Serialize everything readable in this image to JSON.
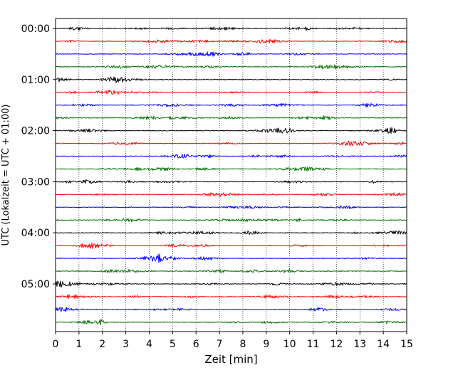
{
  "chart_data": {
    "type": "line",
    "subtype": "helicorder",
    "xlabel": "Zeit  [min]",
    "ylabel": "UTC (Lokalzeit = UTC + 01:00)",
    "xlim": [
      0,
      15
    ],
    "x_ticks": [
      "0",
      "1",
      "2",
      "3",
      "4",
      "5",
      "6",
      "7",
      "8",
      "9",
      "10",
      "11",
      "12",
      "13",
      "14",
      "15"
    ],
    "y_ticks": [
      "00:00",
      "01:00",
      "02:00",
      "03:00",
      "04:00",
      "05:00"
    ],
    "y_tick_trace_index": [
      0,
      4,
      8,
      12,
      16,
      20
    ],
    "trace_count": 24,
    "minutes_per_trace": 15,
    "color_cycle": [
      "#000000",
      "#ff0000",
      "#0000ff",
      "#007000"
    ],
    "grid": "vertical dotted",
    "legend": "none"
  }
}
